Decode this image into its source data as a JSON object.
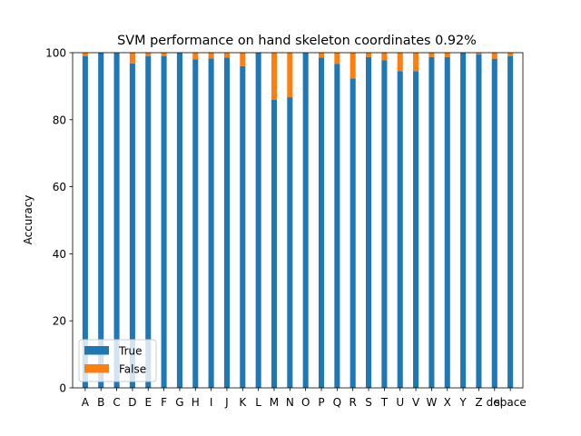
{
  "chart_data": {
    "type": "bar",
    "stacked": true,
    "title": "SVM performance on hand skeleton coordinates 0.92%",
    "xlabel": "",
    "ylabel": "Accuracy",
    "ylim": [
      0,
      100
    ],
    "yticks": [
      0,
      20,
      40,
      60,
      80,
      100
    ],
    "grid": false,
    "legend_position": "lower-left",
    "categories": [
      "A",
      "B",
      "C",
      "D",
      "E",
      "F",
      "G",
      "H",
      "I",
      "J",
      "K",
      "L",
      "M",
      "N",
      "O",
      "P",
      "Q",
      "R",
      "S",
      "T",
      "U",
      "V",
      "W",
      "X",
      "Y",
      "Z",
      "del",
      "space"
    ],
    "series": [
      {
        "name": "True",
        "color": "#1f77b4",
        "values": [
          99.0,
          100,
          100,
          96.8,
          99.0,
          99.0,
          100,
          98.0,
          98.3,
          98.5,
          96.0,
          100,
          86.0,
          86.7,
          100,
          98.5,
          96.7,
          92.3,
          98.7,
          97.7,
          94.5,
          94.5,
          98.7,
          98.7,
          100,
          99.5,
          98.2,
          99.0
        ]
      },
      {
        "name": "False",
        "color": "#ff7f0e",
        "values": [
          1.0,
          0,
          0,
          3.2,
          1.0,
          1.0,
          0,
          2.0,
          1.7,
          1.5,
          4.0,
          0,
          14.0,
          13.3,
          0,
          1.5,
          3.3,
          7.7,
          1.3,
          2.3,
          5.5,
          5.5,
          1.3,
          1.3,
          0,
          0.5,
          1.8,
          1.0
        ]
      }
    ]
  }
}
